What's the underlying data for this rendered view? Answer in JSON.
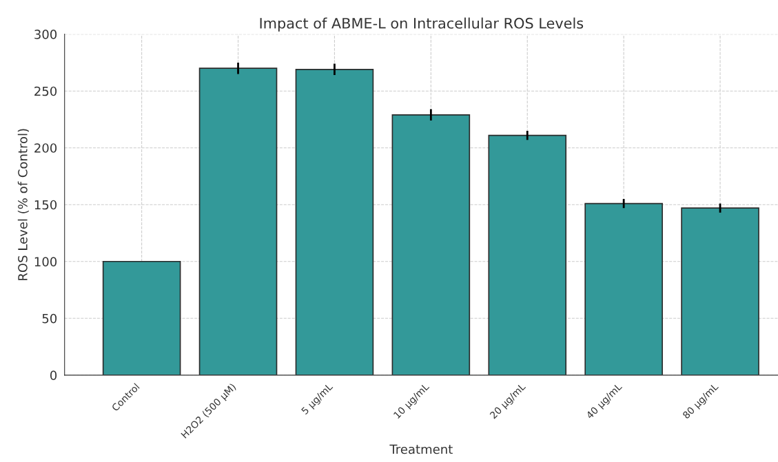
{
  "chart_data": {
    "type": "bar",
    "title": "Impact of ABME-L on Intracellular ROS Levels",
    "xlabel": "Treatment",
    "ylabel": "ROS Level (% of Control)",
    "categories": [
      "Control",
      "H2O2 (500 µM)",
      "5 µg/mL",
      "10 µg/mL",
      "20 µg/mL",
      "40 µg/mL",
      "80 µg/mL"
    ],
    "values": [
      100,
      270,
      269,
      229,
      211,
      151,
      147
    ],
    "errors": [
      null,
      5,
      5,
      5,
      4,
      4,
      4
    ],
    "color": "#339999",
    "ylim": [
      0,
      300
    ],
    "yticks": [
      0,
      50,
      100,
      150,
      200,
      250,
      300
    ],
    "grid": true
  }
}
